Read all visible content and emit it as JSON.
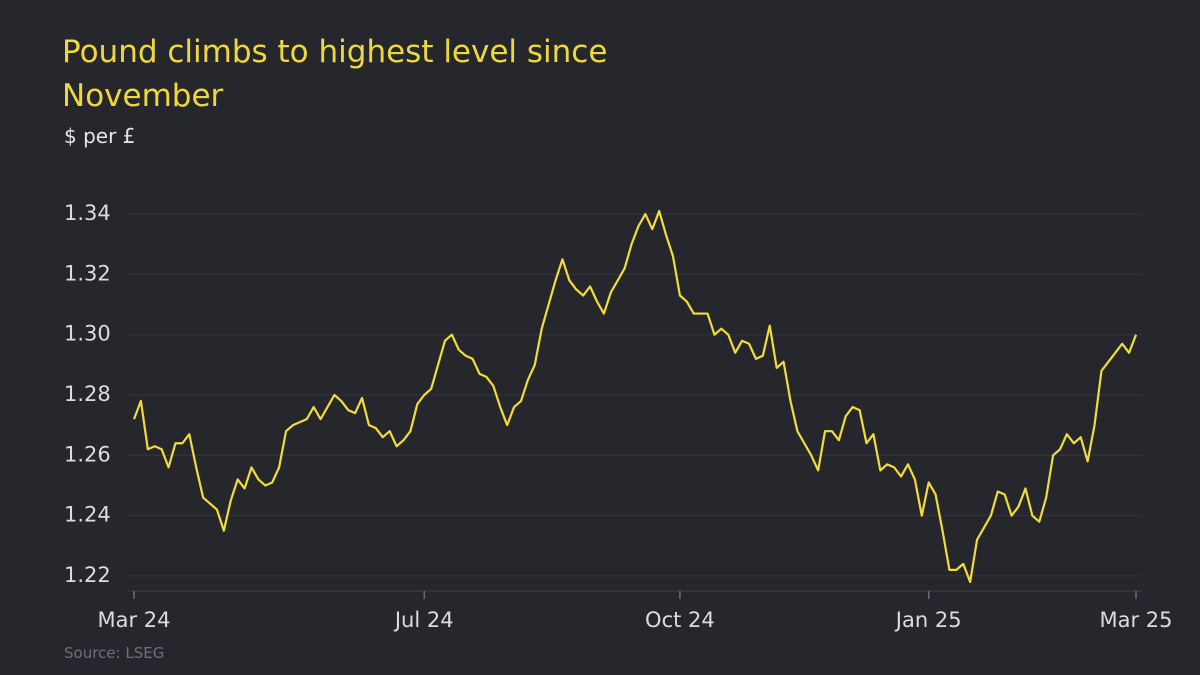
{
  "chart_data": {
    "type": "line",
    "title": "Pound climbs to highest level since November",
    "subtitle": "$ per £",
    "source": "Source: LSEG",
    "categories": [
      "Mar 24",
      null,
      null,
      null,
      null,
      null,
      null,
      null,
      null,
      null,
      null,
      null,
      null,
      null,
      null,
      null,
      null,
      null,
      null,
      null,
      null,
      null,
      null,
      null,
      null,
      null,
      null,
      null,
      null,
      null,
      null,
      null,
      null,
      null,
      null,
      null,
      null,
      null,
      null,
      null,
      null,
      null,
      "Jul 24",
      null,
      null,
      null,
      null,
      null,
      null,
      null,
      null,
      null,
      null,
      null,
      null,
      null,
      null,
      null,
      null,
      null,
      null,
      null,
      null,
      null,
      null,
      null,
      null,
      null,
      null,
      null,
      null,
      null,
      null,
      null,
      null,
      null,
      null,
      null,
      null,
      "Oct 24",
      null,
      null,
      null,
      null,
      null,
      null,
      null,
      null,
      null,
      null,
      null,
      null,
      null,
      null,
      null,
      null,
      null,
      null,
      null,
      null,
      null,
      null,
      null,
      null,
      null,
      null,
      null,
      null,
      null,
      null,
      null,
      null,
      null,
      null,
      null,
      "Jan 25",
      null,
      null,
      null,
      null,
      null,
      null,
      null,
      null,
      null,
      null,
      null,
      null,
      null,
      null,
      null,
      null,
      null,
      null,
      null,
      null,
      null,
      null,
      null,
      null,
      null,
      null,
      null,
      null,
      null,
      "Mar 25"
    ],
    "values": [
      1.272,
      1.278,
      1.262,
      1.263,
      1.262,
      1.256,
      1.264,
      1.264,
      1.267,
      1.256,
      1.246,
      1.244,
      1.242,
      1.235,
      1.245,
      1.252,
      1.249,
      1.256,
      1.252,
      1.25,
      1.251,
      1.256,
      1.268,
      1.27,
      1.271,
      1.272,
      1.276,
      1.272,
      1.276,
      1.28,
      1.278,
      1.275,
      1.274,
      1.279,
      1.27,
      1.269,
      1.266,
      1.268,
      1.263,
      1.265,
      1.268,
      1.277,
      1.28,
      1.282,
      1.29,
      1.298,
      1.3,
      1.295,
      1.293,
      1.292,
      1.287,
      1.286,
      1.283,
      1.276,
      1.27,
      1.276,
      1.278,
      1.285,
      1.29,
      1.302,
      1.31,
      1.318,
      1.325,
      1.318,
      1.315,
      1.313,
      1.316,
      1.311,
      1.307,
      1.314,
      1.318,
      1.322,
      1.33,
      1.336,
      1.34,
      1.335,
      1.341,
      1.333,
      1.326,
      1.313,
      1.311,
      1.307,
      1.307,
      1.307,
      1.3,
      1.302,
      1.3,
      1.294,
      1.298,
      1.297,
      1.292,
      1.293,
      1.303,
      1.289,
      1.291,
      1.278,
      1.268,
      1.264,
      1.26,
      1.255,
      1.268,
      1.268,
      1.265,
      1.273,
      1.276,
      1.275,
      1.264,
      1.267,
      1.255,
      1.257,
      1.256,
      1.253,
      1.257,
      1.252,
      1.24,
      1.251,
      1.247,
      1.235,
      1.222,
      1.222,
      1.224,
      1.218,
      1.232,
      1.236,
      1.24,
      1.248,
      1.247,
      1.24,
      1.243,
      1.249,
      1.24,
      1.238,
      1.246,
      1.26,
      1.262,
      1.267,
      1.264,
      1.266,
      1.258,
      1.27,
      1.288,
      1.291,
      1.294,
      1.297,
      1.294,
      1.3
    ],
    "color": "#f2dc3b",
    "ylim": [
      1.215,
      1.345
    ],
    "yticks": [
      1.22,
      1.24,
      1.26,
      1.28,
      {
        "value": 1.3,
        "label": "1.30"
      },
      1.32,
      1.34
    ],
    "grid": true
  }
}
